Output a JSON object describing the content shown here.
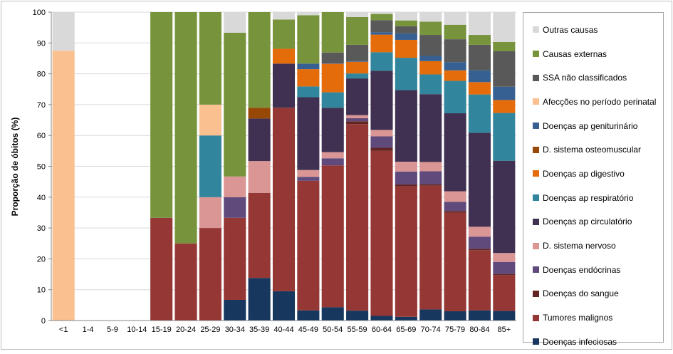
{
  "chart_data": {
    "type": "bar",
    "stacked": true,
    "ylabel": "Proporção de óbitos (%)",
    "xlabel": "",
    "ylim": [
      0,
      100
    ],
    "yticks": [
      0,
      10,
      20,
      30,
      40,
      50,
      60,
      70,
      80,
      90,
      100
    ],
    "grid": true,
    "legend_position": "right",
    "categories": [
      "<1",
      "1-4",
      "5-9",
      "10-14",
      "15-19",
      "20-24",
      "25-29",
      "30-34",
      "35-39",
      "40-44",
      "45-49",
      "50-54",
      "55-59",
      "60-64",
      "65-69",
      "70-74",
      "75-79",
      "80-84",
      "85+"
    ],
    "series": [
      {
        "name": "Doenças infeciosas",
        "color": "#17375e",
        "values": [
          0,
          0,
          0,
          0,
          0,
          0,
          0,
          6.7,
          13.8,
          9.5,
          3.3,
          4.3,
          3.2,
          1.5,
          1.2,
          3.6,
          3.0,
          3.3,
          3.1
        ]
      },
      {
        "name": "Tumores malignos",
        "color": "#953735",
        "values": [
          0,
          0,
          0,
          0,
          33.3,
          25.0,
          30.0,
          26.6,
          27.6,
          59.5,
          42.0,
          46.0,
          60.5,
          53.5,
          42.3,
          40.1,
          32.0,
          19.5,
          11.6
        ]
      },
      {
        "name": "Doenças do sangue",
        "color": "#632523",
        "values": [
          0,
          0,
          0,
          0,
          0,
          0,
          0,
          0,
          0,
          0,
          0,
          0,
          0.9,
          1.0,
          0.6,
          0.5,
          0.5,
          0.4,
          0.4
        ]
      },
      {
        "name": "Doenças endócrinas",
        "color": "#604a7b",
        "values": [
          0,
          0,
          0,
          0,
          0,
          0,
          0,
          6.7,
          0,
          0,
          1.3,
          2.3,
          1.0,
          3.7,
          4.2,
          4.2,
          3.0,
          4.0,
          3.9
        ]
      },
      {
        "name": "D. sistema nervoso",
        "color": "#d99694",
        "values": [
          0,
          0,
          0,
          0,
          0,
          0,
          10.0,
          6.7,
          10.3,
          0,
          2.2,
          2.0,
          1.0,
          2.1,
          3.2,
          3.0,
          3.4,
          3.2,
          2.9
        ]
      },
      {
        "name": "Doenças ap circulatório",
        "color": "#403152",
        "values": [
          0,
          0,
          0,
          0,
          0,
          0,
          0,
          0,
          13.8,
          14.3,
          23.6,
          14.4,
          11.9,
          19.2,
          23.2,
          22.0,
          25.3,
          30.5,
          29.9
        ]
      },
      {
        "name": "Doenças ap respiratório",
        "color": "#31859c",
        "values": [
          0,
          0,
          0,
          0,
          0,
          0,
          20.0,
          0,
          0,
          0,
          3.5,
          5.0,
          1.6,
          6.0,
          10.5,
          6.4,
          10.5,
          12.4,
          15.5
        ]
      },
      {
        "name": "Doenças ap digestivo",
        "color": "#e46c0a",
        "values": [
          0,
          0,
          0,
          0,
          0,
          0,
          0,
          0,
          0,
          4.8,
          5.6,
          9.3,
          3.8,
          5.7,
          5.8,
          4.3,
          3.4,
          4.0,
          4.2
        ]
      },
      {
        "name": "D. sistema osteomuscular",
        "color": "#974706",
        "values": [
          0,
          0,
          0,
          0,
          0,
          0,
          0,
          0,
          3.5,
          0,
          0,
          0,
          0,
          0,
          0,
          0,
          0,
          0,
          0
        ]
      },
      {
        "name": "Doenças ap geniturinário",
        "color": "#376092",
        "values": [
          0,
          0,
          0,
          0,
          0,
          0,
          0,
          0,
          0,
          0,
          1.8,
          0.3,
          0.3,
          0.8,
          2.1,
          1.7,
          2.7,
          3.8,
          4.3
        ]
      },
      {
        "name": "Afecções no período perinatal",
        "color": "#fac090",
        "values": [
          87.5,
          0,
          0,
          0,
          0,
          0,
          10.0,
          0,
          0,
          0,
          0,
          0,
          0,
          0,
          0,
          0,
          0,
          0,
          0
        ]
      },
      {
        "name": "SSA não classificados",
        "color": "#595959",
        "values": [
          0,
          0,
          0,
          0,
          0,
          0,
          0,
          0,
          0,
          0,
          0,
          3.3,
          5.2,
          3.9,
          2.3,
          6.8,
          7.4,
          8.3,
          11.5
        ]
      },
      {
        "name": "Causas externas",
        "color": "#77933c",
        "values": [
          0,
          0,
          0,
          0,
          66.7,
          75.0,
          30.0,
          46.6,
          31.0,
          9.5,
          15.7,
          13.1,
          9.0,
          2.0,
          1.9,
          4.3,
          4.7,
          3.2,
          3.0
        ]
      },
      {
        "name": "Outras causas",
        "color": "#d9d9d9",
        "values": [
          12.5,
          0,
          0,
          0,
          0,
          0,
          0,
          6.7,
          0,
          2.4,
          1.0,
          0,
          1.6,
          0.6,
          2.7,
          3.1,
          4.1,
          7.4,
          9.7
        ]
      }
    ]
  }
}
